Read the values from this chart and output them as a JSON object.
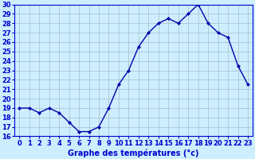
{
  "x": [
    0,
    1,
    2,
    3,
    4,
    5,
    6,
    7,
    8,
    9,
    10,
    11,
    12,
    13,
    14,
    15,
    16,
    17,
    18,
    19,
    20,
    21,
    22,
    23
  ],
  "y": [
    19,
    19,
    18.5,
    19,
    18.5,
    17.5,
    16.5,
    16.5,
    17,
    19,
    21.5,
    23,
    25.5,
    27,
    28,
    28.5,
    28,
    29,
    30,
    28,
    27,
    26.5,
    23.5,
    21.5
  ],
  "line_color": "#0000aa",
  "marker": "D",
  "marker_size": 2.0,
  "background_color": "#cceeff",
  "grid_color": "#aabbcc",
  "xlabel": "Graphe des températures (°c)",
  "xlabel_fontsize": 7,
  "xlim": [
    -0.5,
    23.5
  ],
  "ylim": [
    16,
    30
  ],
  "yticks": [
    16,
    17,
    18,
    19,
    20,
    21,
    22,
    23,
    24,
    25,
    26,
    27,
    28,
    29,
    30
  ],
  "xticks": [
    0,
    1,
    2,
    3,
    4,
    5,
    6,
    7,
    8,
    9,
    10,
    11,
    12,
    13,
    14,
    15,
    16,
    17,
    18,
    19,
    20,
    21,
    22,
    23
  ],
  "tick_fontsize": 6,
  "axis_label_color": "#0000cc",
  "tick_color": "#0000cc",
  "linewidth": 1.0
}
